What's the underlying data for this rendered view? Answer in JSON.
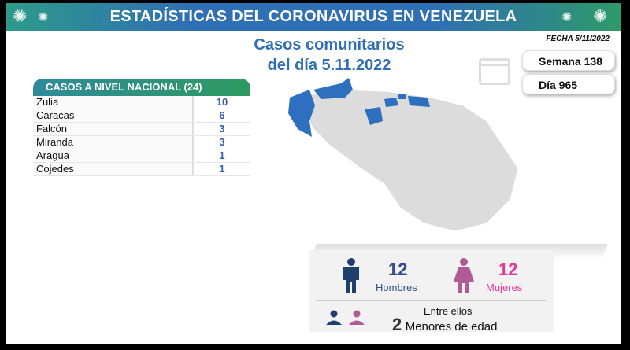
{
  "header": {
    "title": "ESTADÍSTICAS DEL CORONAVIRUS EN VENEZUELA",
    "icon": "virus-icon"
  },
  "subtitle": {
    "line1": "Casos comunitarios",
    "line2": "del día 5.11.2022"
  },
  "fecha": "FECHA 5/11/2022",
  "semana": "Semana 138",
  "dia": "Día 965",
  "table": {
    "title": "CASOS A NIVEL NACIONAL  (24)",
    "rows": [
      {
        "name": "Zulia",
        "value": "10"
      },
      {
        "name": "Caracas",
        "value": "6"
      },
      {
        "name": "Falcón",
        "value": "3"
      },
      {
        "name": "Miranda",
        "value": "3"
      },
      {
        "name": "Aragua",
        "value": "1"
      },
      {
        "name": "Cojedes",
        "value": "1"
      }
    ]
  },
  "map": {
    "highlight_color": "#2f6fc0",
    "base_color": "#dcdcdc",
    "highlighted_states": [
      "Zulia",
      "Caracas",
      "Falcón",
      "Miranda",
      "Aragua",
      "Cojedes"
    ]
  },
  "gender": {
    "men_count": "12",
    "men_label": "Hombres",
    "men_color": "#1f3f6e",
    "women_count": "12",
    "women_label": "Mujeres",
    "women_color": "#e03a9a",
    "minors_intro": "Entre ellos",
    "minors_count": "2",
    "minors_label": "Menores de edad"
  }
}
